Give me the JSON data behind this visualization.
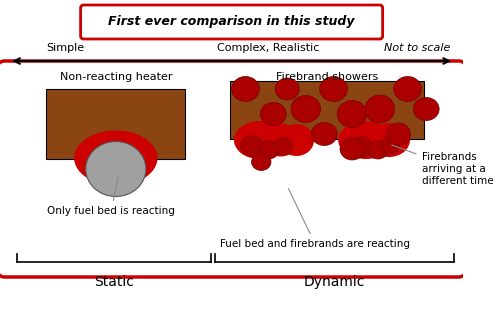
{
  "bg_color": "#ffffff",
  "main_border_color": "#cc0000",
  "main_border_lw": 2.5,
  "title_static": "Static",
  "title_dynamic": "Dynamic",
  "label_non_reacting": "Non-reacting heater",
  "label_firebrand": "Firebrand showers",
  "label_only_fuel": "Only fuel bed is reacting",
  "label_fuel_firebrands": "Fuel bed and firebrands are reacting",
  "label_firebrands_time": "Firebrands\narriving at a\ndifferent time",
  "label_simple": "Simple",
  "label_complex": "Complex, Realistic",
  "label_not_to_scale": "Not to scale",
  "label_bottom": "First ever comparison in this study",
  "fuel_color": "#8B4513",
  "fire_color": "#cc0000",
  "heater_color": "#a0a0a0",
  "firebrand_color": "#aa0000",
  "arrow_color": "#000000"
}
